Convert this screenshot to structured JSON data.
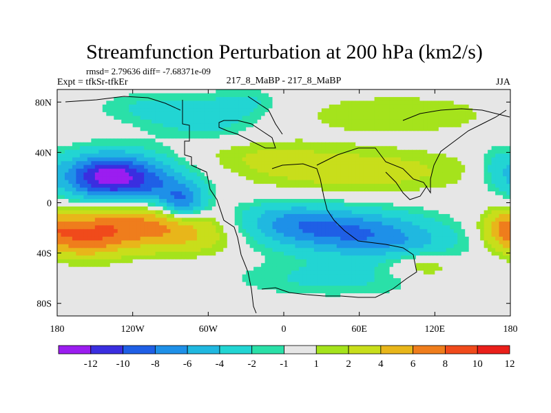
{
  "chart_data": {
    "type": "heatmap",
    "title": "Streamfunction Perturbation at 200 hPa (km2/s)",
    "subtitle_stats": "rmsd= 2.79636 diff= -7.68371e-09",
    "experiment": "Expt = tfkSr-tfkEr",
    "center_label": "217_8_MaBP - 217_8_MaBP",
    "season": "JJA",
    "x_ticks": [
      "180",
      "120W",
      "60W",
      "0",
      "60E",
      "120E",
      "180"
    ],
    "x_tick_values": [
      -180,
      -120,
      -60,
      0,
      60,
      120,
      180
    ],
    "y_ticks": [
      "80N",
      "40N",
      "0",
      "40S",
      "80S"
    ],
    "y_tick_values": [
      80,
      40,
      0,
      -40,
      -80
    ],
    "xlim": [
      -180,
      180
    ],
    "ylim": [
      -90,
      90
    ],
    "colorbar_labels": [
      "-12",
      "-10",
      "-8",
      "-6",
      "-4",
      "-2",
      "-1",
      "1",
      "2",
      "4",
      "6",
      "8",
      "10",
      "12"
    ],
    "colorbar_colors": [
      "#9b1df0",
      "#3a2ee0",
      "#1f5fe6",
      "#1e90e8",
      "#20b8e0",
      "#22d5d3",
      "#2ae0a8",
      "#e6e6e6",
      "#a5e31c",
      "#c8de1b",
      "#e8b61a",
      "#ef7d1c",
      "#f04a1b",
      "#ea1f1a"
    ],
    "bins": [
      -12,
      -10,
      -8,
      -6,
      -4,
      -2,
      -1,
      1,
      2,
      4,
      6,
      8,
      10,
      12
    ],
    "features": [
      {
        "lon": -140,
        "lat": 20,
        "amp": -11,
        "slon": 26,
        "slat": 13
      },
      {
        "lon": -120,
        "lat": 22,
        "amp": -3,
        "slon": 40,
        "slat": 14
      },
      {
        "lon": -80,
        "lat": 0,
        "amp": -7,
        "slon": 13,
        "slat": 9
      },
      {
        "lon": -95,
        "lat": 12,
        "amp": -3,
        "slon": 20,
        "slat": 10
      },
      {
        "lon": -125,
        "lat": -18,
        "amp": 6.5,
        "slon": 38,
        "slat": 13
      },
      {
        "lon": -160,
        "lat": -30,
        "amp": 5,
        "slon": 22,
        "slat": 11
      },
      {
        "lon": -70,
        "lat": -25,
        "amp": 3,
        "slon": 30,
        "slat": 12
      },
      {
        "lon": 45,
        "lat": -22,
        "amp": -7.5,
        "slon": 50,
        "slat": 12
      },
      {
        "lon": 0,
        "lat": -12,
        "amp": -3,
        "slon": 30,
        "slat": 10
      },
      {
        "lon": 90,
        "lat": -35,
        "amp": -3,
        "slon": 40,
        "slat": 10
      },
      {
        "lon": 40,
        "lat": -60,
        "amp": -2.5,
        "slon": 55,
        "slat": 10
      },
      {
        "lon": 110,
        "lat": -50,
        "amp": 3,
        "slon": 20,
        "slat": 8
      },
      {
        "lon": 175,
        "lat": -20,
        "amp": 4,
        "slon": 12,
        "slat": 10
      },
      {
        "lon": 60,
        "lat": 25,
        "amp": 3,
        "slon": 65,
        "slat": 12
      },
      {
        "lon": -20,
        "lat": 38,
        "amp": 1.6,
        "slon": 40,
        "slat": 10
      },
      {
        "lon": 90,
        "lat": 70,
        "amp": 1.8,
        "slon": 60,
        "slat": 12
      },
      {
        "lon": -60,
        "lat": 62,
        "amp": -2.3,
        "slon": 30,
        "slat": 10
      },
      {
        "lon": -100,
        "lat": 75,
        "amp": -2.5,
        "slon": 35,
        "slat": 9
      },
      {
        "lon": -30,
        "lat": 80,
        "amp": -2.2,
        "slon": 20,
        "slat": 8
      },
      {
        "lon": 170,
        "lat": 30,
        "amp": -2,
        "slon": 10,
        "slat": 12
      }
    ]
  }
}
